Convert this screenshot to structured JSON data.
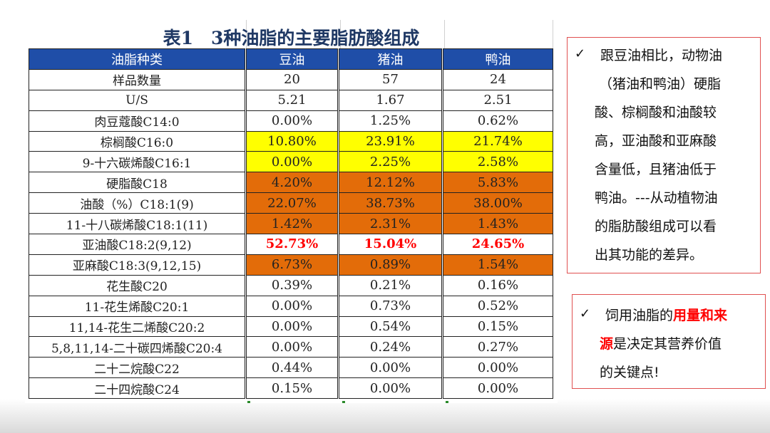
{
  "table": {
    "title": "表1　3种油脂的主要脂肪酸组成",
    "headers": [
      "油脂种类",
      "豆油",
      "猪油",
      "鸭油"
    ],
    "rows": [
      {
        "name": "样品数量",
        "values": [
          "20",
          "57",
          "24"
        ],
        "style": ""
      },
      {
        "name": "U/S",
        "values": [
          "5.21",
          "1.67",
          "2.51"
        ],
        "style": ""
      },
      {
        "name": "肉豆蔻酸C14:0",
        "values": [
          "0.00%",
          "1.25%",
          "0.62%"
        ],
        "style": ""
      },
      {
        "name": "棕榈酸C16:0",
        "values": [
          "10.80%",
          "23.91%",
          "21.74%"
        ],
        "style": "yellow"
      },
      {
        "name": "9-十六碳烯酸C16:1",
        "values": [
          "0.00%",
          "2.25%",
          "2.58%"
        ],
        "style": "yellow"
      },
      {
        "name": "硬脂酸C18",
        "values": [
          "4.20%",
          "12.12%",
          "5.83%"
        ],
        "style": "orange"
      },
      {
        "name": "油酸（%）C18:1(9)",
        "values": [
          "22.07%",
          "38.73%",
          "38.00%"
        ],
        "style": "orange"
      },
      {
        "name": "11-十八碳烯酸C18:1(11)",
        "values": [
          "1.42%",
          "2.31%",
          "1.43%"
        ],
        "style": "orange"
      },
      {
        "name": "亚油酸C18:2(9,12)",
        "values": [
          "52.73%",
          "15.04%",
          "24.65%"
        ],
        "style": "red"
      },
      {
        "name": "亚麻酸C18:3(9,12,15)",
        "values": [
          "6.73%",
          "0.89%",
          "1.54%"
        ],
        "style": "orange"
      },
      {
        "name": "花生酸C20",
        "values": [
          "0.39%",
          "0.21%",
          "0.16%"
        ],
        "style": ""
      },
      {
        "name": "11-花生烯酸C20:1",
        "values": [
          "0.00%",
          "0.73%",
          "0.52%"
        ],
        "style": ""
      },
      {
        "name": "11,14-花生二烯酸C20:2",
        "values": [
          "0.00%",
          "0.54%",
          "0.15%"
        ],
        "style": ""
      },
      {
        "name": "5,8,11,14-二十碳四烯酸C20:4",
        "values": [
          "0.00%",
          "0.24%",
          "0.27%"
        ],
        "style": ""
      },
      {
        "name": "二十二烷酸C22",
        "values": [
          "0.44%",
          "0.00%",
          "0.00%"
        ],
        "style": ""
      },
      {
        "name": "二十四烷酸C24",
        "values": [
          "0.15%",
          "0.00%",
          "0.00%"
        ],
        "style": ""
      }
    ]
  },
  "chart_data": {
    "type": "table",
    "title": "表1　3种油脂的主要脂肪酸组成",
    "columns": [
      "油脂种类",
      "豆油",
      "猪油",
      "鸭油"
    ],
    "rows": [
      [
        "样品数量",
        "20",
        "57",
        "24"
      ],
      [
        "U/S",
        "5.21",
        "1.67",
        "2.51"
      ],
      [
        "肉豆蔻酸C14:0",
        "0.00%",
        "1.25%",
        "0.62%"
      ],
      [
        "棕榈酸C16:0",
        "10.80%",
        "23.91%",
        "21.74%"
      ],
      [
        "9-十六碳烯酸C16:1",
        "0.00%",
        "2.25%",
        "2.58%"
      ],
      [
        "硬脂酸C18",
        "4.20%",
        "12.12%",
        "5.83%"
      ],
      [
        "油酸（%）C18:1(9)",
        "22.07%",
        "38.73%",
        "38.00%"
      ],
      [
        "11-十八碳烯酸C18:1(11)",
        "1.42%",
        "2.31%",
        "1.43%"
      ],
      [
        "亚油酸C18:2(9,12)",
        "52.73%",
        "15.04%",
        "24.65%"
      ],
      [
        "亚麻酸C18:3(9,12,15)",
        "6.73%",
        "0.89%",
        "1.54%"
      ],
      [
        "花生酸C20",
        "0.39%",
        "0.21%",
        "0.16%"
      ],
      [
        "11-花生烯酸C20:1",
        "0.00%",
        "0.73%",
        "0.52%"
      ],
      [
        "11,14-花生二烯酸C20:2",
        "0.00%",
        "0.54%",
        "0.15%"
      ],
      [
        "5,8,11,14-二十碳四烯酸C20:4",
        "0.00%",
        "0.24%",
        "0.27%"
      ],
      [
        "二十二烷酸C22",
        "0.44%",
        "0.00%",
        "0.00%"
      ],
      [
        "二十四烷酸C24",
        "0.15%",
        "0.00%",
        "0.00%"
      ]
    ],
    "highlight_colors": {
      "yellow": "#ffff00",
      "orange": "#e36c09",
      "red_text": "#ff0000",
      "header": "#1f4ea8"
    }
  },
  "note1": {
    "check": "✓",
    "lines": [
      "跟豆油相比，动物油",
      "（猪油和鸭油）硬脂",
      "酸、棕榈酸和油酸较",
      "高，亚油酸和亚麻酸",
      "含量低，且猪油低于",
      "鸭油。---从动植物油",
      "的脂肪酸组成可以看",
      "出其功能的差异。"
    ]
  },
  "note2": {
    "check": "✓",
    "line1_plain": "饲用油脂的",
    "line1_accent": "用量和来",
    "line2_accent": "源",
    "line2_plain": "是决定其营养价值",
    "line3_plain": "的关键点!"
  }
}
